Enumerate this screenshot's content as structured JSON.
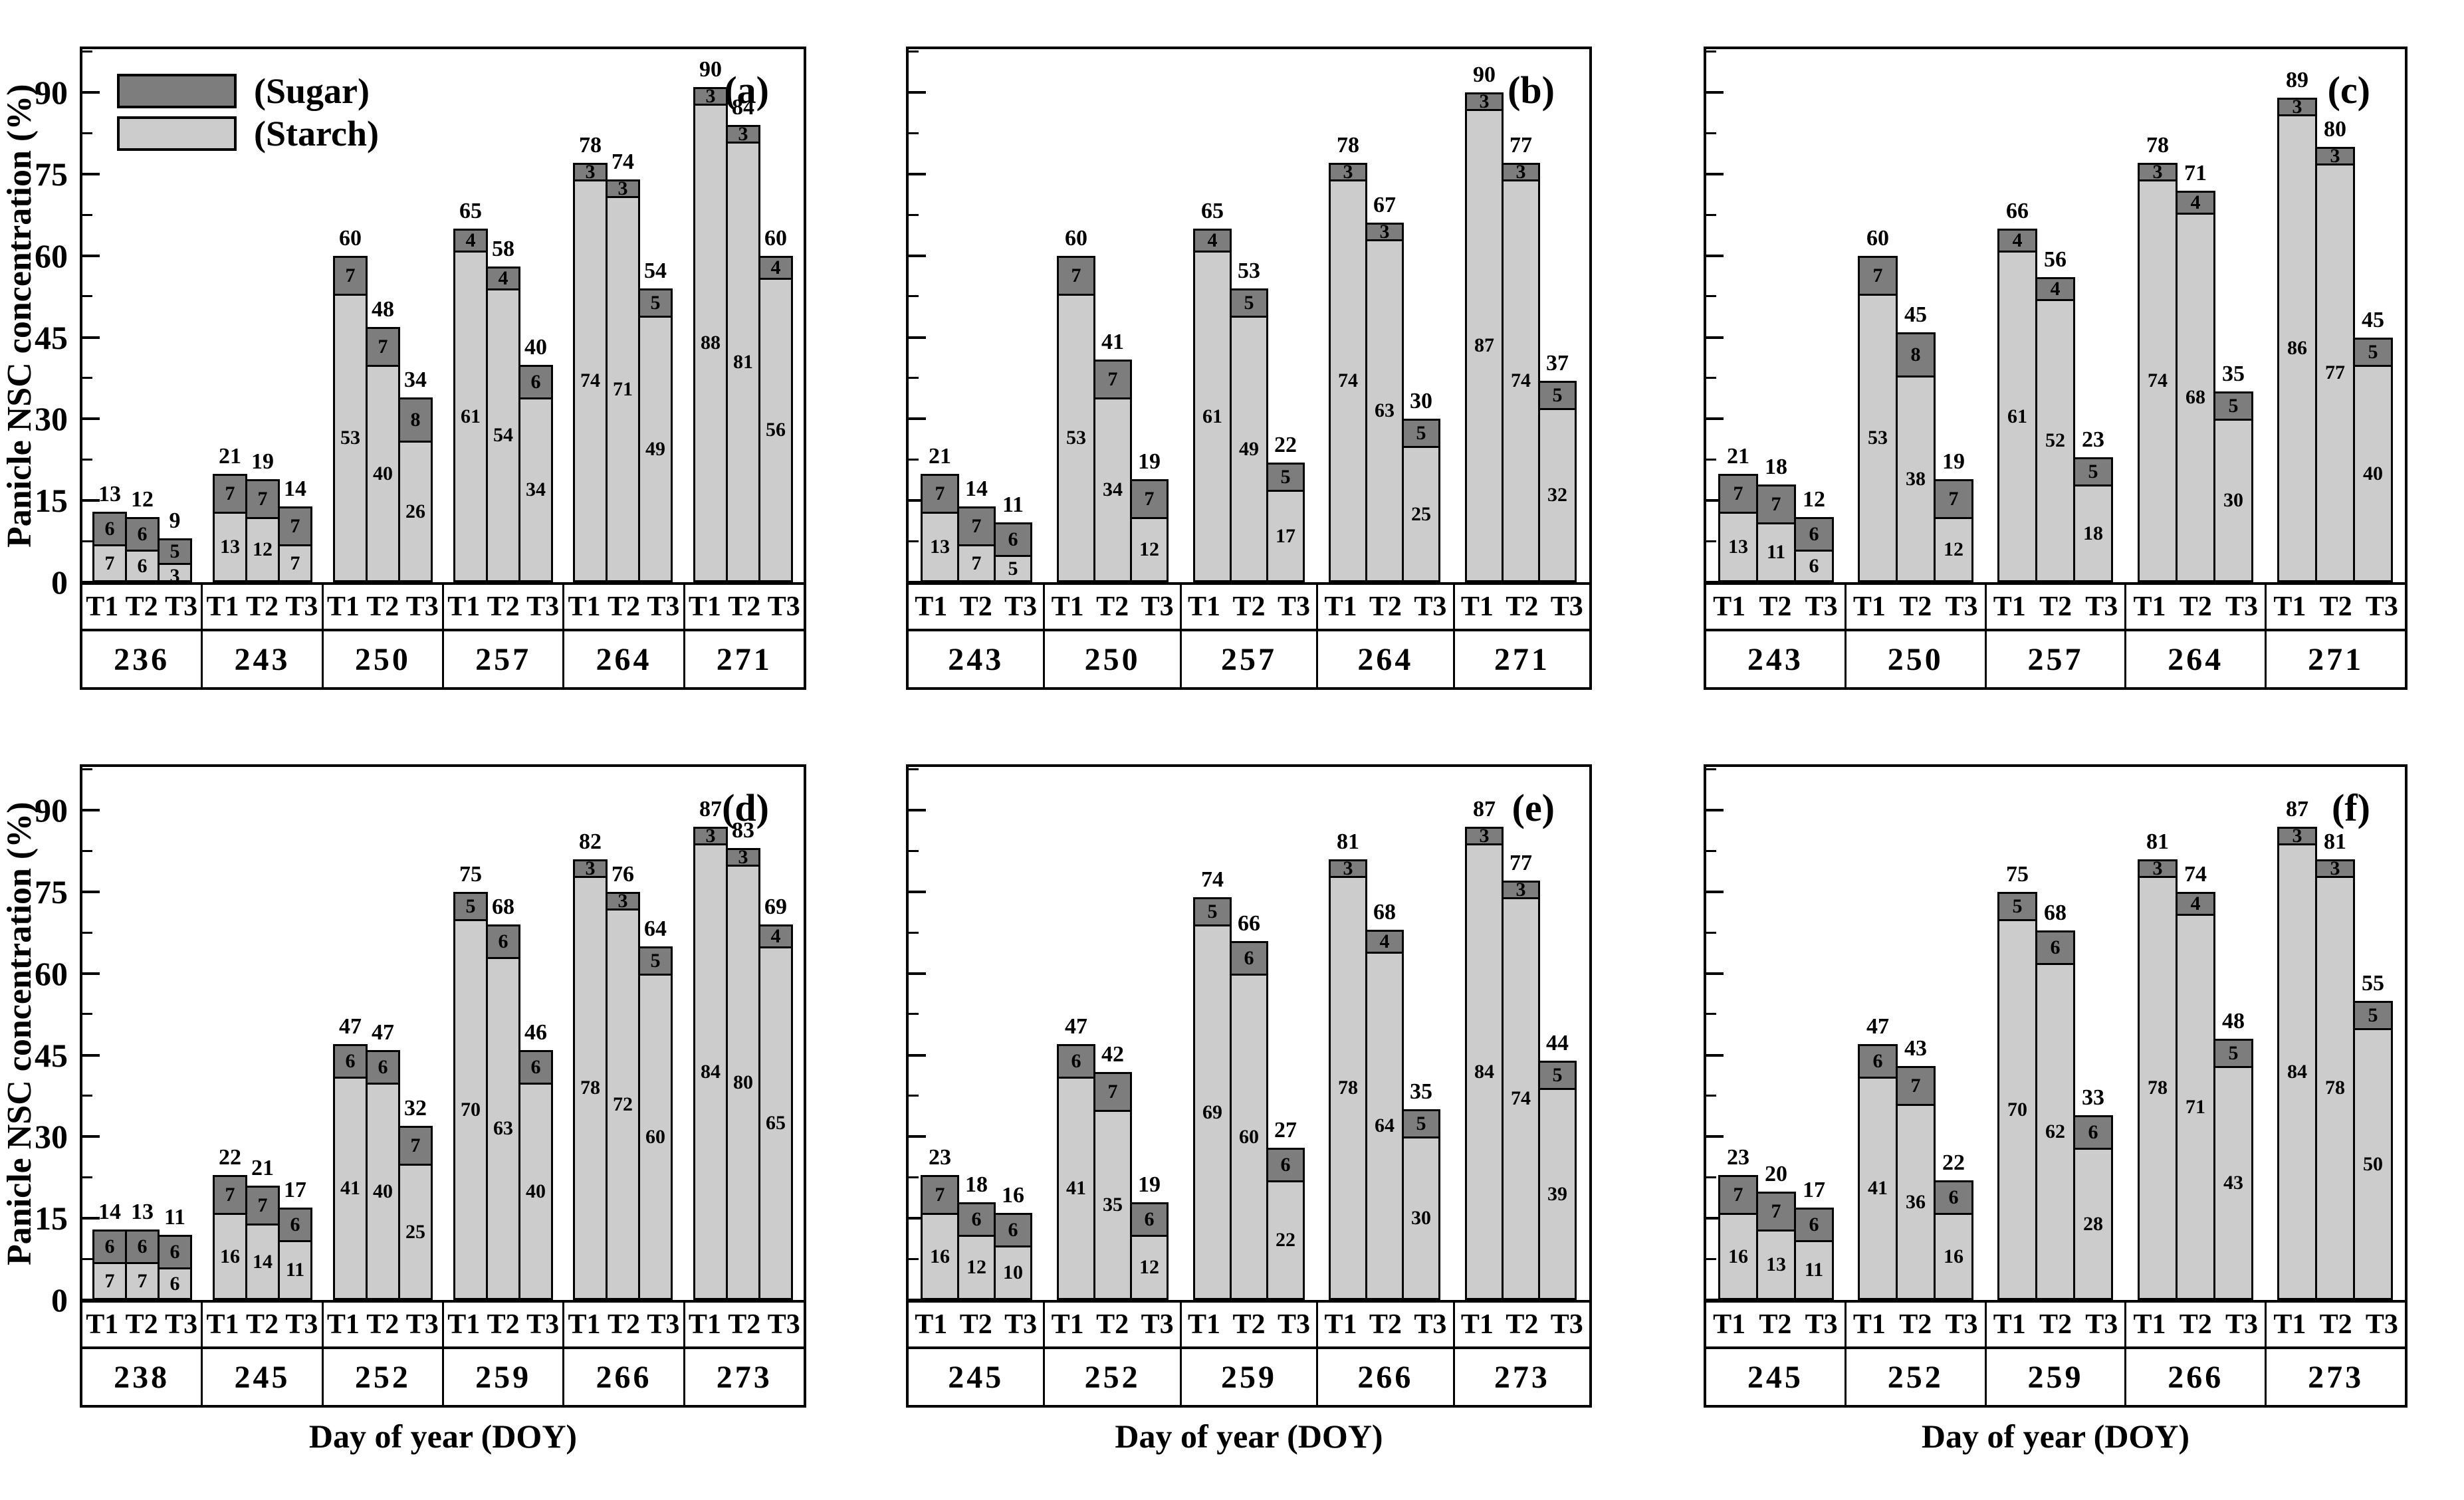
{
  "figure": {
    "y_axis": {
      "label": "Panicle NSC concentration (%)",
      "ticks": [
        0,
        15,
        30,
        45,
        60,
        75,
        90
      ],
      "max": 98,
      "minor_step": 7.5
    },
    "x_axis_label": "Day of year (DOY)",
    "treatments": [
      "T1",
      "T2",
      "T3"
    ],
    "legend": [
      {
        "name": "(Sugar)",
        "color": "#7d7d7d"
      },
      {
        "name": "(Starch)",
        "color": "#cccccc"
      }
    ],
    "colors": {
      "sugar": "#7d7d7d",
      "starch": "#cccccc",
      "outline": "#000000"
    }
  },
  "chart_data": [
    {
      "type": "stacked-bar",
      "panel": "(a)",
      "y_labels": true,
      "legend": true,
      "x_label": false,
      "groups": [
        {
          "doy": "236",
          "bars": [
            {
              "t": "T1",
              "total": 13,
              "sugar": 6,
              "starch": 7
            },
            {
              "t": "T2",
              "total": 12,
              "sugar": 6,
              "starch": 6
            },
            {
              "t": "T3",
              "total": 9,
              "sugar": 5,
              "starch": 3
            }
          ]
        },
        {
          "doy": "243",
          "bars": [
            {
              "t": "T1",
              "total": 21,
              "sugar": 7,
              "starch": 13
            },
            {
              "t": "T2",
              "total": 19,
              "sugar": 7,
              "starch": 12
            },
            {
              "t": "T3",
              "total": 14,
              "sugar": 7,
              "starch": 7
            }
          ]
        },
        {
          "doy": "250",
          "bars": [
            {
              "t": "T1",
              "total": 60,
              "sugar": 7,
              "starch": 53
            },
            {
              "t": "T2",
              "total": 48,
              "sugar": 7,
              "starch": 40
            },
            {
              "t": "T3",
              "total": 34,
              "sugar": 8,
              "starch": 26
            }
          ]
        },
        {
          "doy": "257",
          "bars": [
            {
              "t": "T1",
              "total": 65,
              "sugar": 4,
              "starch": 61
            },
            {
              "t": "T2",
              "total": 58,
              "sugar": 4,
              "starch": 54
            },
            {
              "t": "T3",
              "total": 40,
              "sugar": 6,
              "starch": 34
            }
          ]
        },
        {
          "doy": "264",
          "bars": [
            {
              "t": "T1",
              "total": 78,
              "sugar": 3,
              "starch": 74
            },
            {
              "t": "T2",
              "total": 74,
              "sugar": 3,
              "starch": 71
            },
            {
              "t": "T3",
              "total": 54,
              "sugar": 5,
              "starch": 49
            }
          ]
        },
        {
          "doy": "271",
          "bars": [
            {
              "t": "T1",
              "total": 90,
              "sugar": 3,
              "starch": 88
            },
            {
              "t": "T2",
              "total": 84,
              "sugar": 3,
              "starch": 81
            },
            {
              "t": "T3",
              "total": 60,
              "sugar": 4,
              "starch": 56
            }
          ]
        }
      ]
    },
    {
      "type": "stacked-bar",
      "panel": "(b)",
      "y_labels": false,
      "legend": false,
      "x_label": false,
      "groups": [
        {
          "doy": "243",
          "bars": [
            {
              "t": "T1",
              "total": 21,
              "sugar": 7,
              "starch": 13
            },
            {
              "t": "T2",
              "total": 14,
              "sugar": 7,
              "starch": 7
            },
            {
              "t": "T3",
              "total": 11,
              "sugar": 6,
              "starch": 5
            }
          ]
        },
        {
          "doy": "250",
          "bars": [
            {
              "t": "T1",
              "total": 60,
              "sugar": 7,
              "starch": 53
            },
            {
              "t": "T2",
              "total": 41,
              "sugar": 7,
              "starch": 34
            },
            {
              "t": "T3",
              "total": 19,
              "sugar": 7,
              "starch": 12
            }
          ]
        },
        {
          "doy": "257",
          "bars": [
            {
              "t": "T1",
              "total": 65,
              "sugar": 4,
              "starch": 61
            },
            {
              "t": "T2",
              "total": 53,
              "sugar": 5,
              "starch": 49
            },
            {
              "t": "T3",
              "total": 22,
              "sugar": 5,
              "starch": 17
            }
          ]
        },
        {
          "doy": "264",
          "bars": [
            {
              "t": "T1",
              "total": 78,
              "sugar": 3,
              "starch": 74
            },
            {
              "t": "T2",
              "total": 67,
              "sugar": 3,
              "starch": 63
            },
            {
              "t": "T3",
              "total": 30,
              "sugar": 5,
              "starch": 25
            }
          ]
        },
        {
          "doy": "271",
          "bars": [
            {
              "t": "T1",
              "total": 90,
              "sugar": 3,
              "starch": 87
            },
            {
              "t": "T2",
              "total": 77,
              "sugar": 3,
              "starch": 74
            },
            {
              "t": "T3",
              "total": 37,
              "sugar": 5,
              "starch": 32
            }
          ]
        }
      ]
    },
    {
      "type": "stacked-bar",
      "panel": "(c)",
      "y_labels": false,
      "legend": false,
      "x_label": false,
      "groups": [
        {
          "doy": "243",
          "bars": [
            {
              "t": "T1",
              "total": 21,
              "sugar": 7,
              "starch": 13
            },
            {
              "t": "T2",
              "total": 18,
              "sugar": 7,
              "starch": 11
            },
            {
              "t": "T3",
              "total": 12,
              "sugar": 6,
              "starch": 6
            }
          ]
        },
        {
          "doy": "250",
          "bars": [
            {
              "t": "T1",
              "total": 60,
              "sugar": 7,
              "starch": 53
            },
            {
              "t": "T2",
              "total": 45,
              "sugar": 8,
              "starch": 38
            },
            {
              "t": "T3",
              "total": 19,
              "sugar": 7,
              "starch": 12
            }
          ]
        },
        {
          "doy": "257",
          "bars": [
            {
              "t": "T1",
              "total": 66,
              "sugar": 4,
              "starch": 61
            },
            {
              "t": "T2",
              "total": 56,
              "sugar": 4,
              "starch": 52
            },
            {
              "t": "T3",
              "total": 23,
              "sugar": 5,
              "starch": 18
            }
          ]
        },
        {
          "doy": "264",
          "bars": [
            {
              "t": "T1",
              "total": 78,
              "sugar": 3,
              "starch": 74
            },
            {
              "t": "T2",
              "total": 71,
              "sugar": 4,
              "starch": 68
            },
            {
              "t": "T3",
              "total": 35,
              "sugar": 5,
              "starch": 30
            }
          ]
        },
        {
          "doy": "271",
          "bars": [
            {
              "t": "T1",
              "total": 89,
              "sugar": 3,
              "starch": 86
            },
            {
              "t": "T2",
              "total": 80,
              "sugar": 3,
              "starch": 77
            },
            {
              "t": "T3",
              "total": 45,
              "sugar": 5,
              "starch": 40
            }
          ]
        }
      ]
    },
    {
      "type": "stacked-bar",
      "panel": "(d)",
      "y_labels": true,
      "legend": false,
      "x_label": true,
      "groups": [
        {
          "doy": "238",
          "bars": [
            {
              "t": "T1",
              "total": 14,
              "sugar": 6,
              "starch": 7
            },
            {
              "t": "T2",
              "total": 13,
              "sugar": 6,
              "starch": 7
            },
            {
              "t": "T3",
              "total": 11,
              "sugar": 6,
              "starch": 6
            }
          ]
        },
        {
          "doy": "245",
          "bars": [
            {
              "t": "T1",
              "total": 22,
              "sugar": 7,
              "starch": 16
            },
            {
              "t": "T2",
              "total": 21,
              "sugar": 7,
              "starch": 14
            },
            {
              "t": "T3",
              "total": 17,
              "sugar": 6,
              "starch": 11
            }
          ]
        },
        {
          "doy": "252",
          "bars": [
            {
              "t": "T1",
              "total": 47,
              "sugar": 6,
              "starch": 41
            },
            {
              "t": "T2",
              "total": 47,
              "sugar": 6,
              "starch": 40
            },
            {
              "t": "T3",
              "total": 32,
              "sugar": 7,
              "starch": 25
            }
          ]
        },
        {
          "doy": "259",
          "bars": [
            {
              "t": "T1",
              "total": 75,
              "sugar": 5,
              "starch": 70
            },
            {
              "t": "T2",
              "total": 68,
              "sugar": 6,
              "starch": 63
            },
            {
              "t": "T3",
              "total": 46,
              "sugar": 6,
              "starch": 40
            }
          ]
        },
        {
          "doy": "266",
          "bars": [
            {
              "t": "T1",
              "total": 82,
              "sugar": 3,
              "starch": 78
            },
            {
              "t": "T2",
              "total": 76,
              "sugar": 3,
              "starch": 72
            },
            {
              "t": "T3",
              "total": 64,
              "sugar": 5,
              "starch": 60
            }
          ]
        },
        {
          "doy": "273",
          "bars": [
            {
              "t": "T1",
              "total": 87,
              "sugar": 3,
              "starch": 84
            },
            {
              "t": "T2",
              "total": 83,
              "sugar": 3,
              "starch": 80
            },
            {
              "t": "T3",
              "total": 69,
              "sugar": 4,
              "starch": 65
            }
          ]
        }
      ]
    },
    {
      "type": "stacked-bar",
      "panel": "(e)",
      "y_labels": false,
      "legend": false,
      "x_label": true,
      "groups": [
        {
          "doy": "245",
          "bars": [
            {
              "t": "T1",
              "total": 23,
              "sugar": 7,
              "starch": 16
            },
            {
              "t": "T2",
              "total": 18,
              "sugar": 6,
              "starch": 12
            },
            {
              "t": "T3",
              "total": 16,
              "sugar": 6,
              "starch": 10
            }
          ]
        },
        {
          "doy": "252",
          "bars": [
            {
              "t": "T1",
              "total": 47,
              "sugar": 6,
              "starch": 41
            },
            {
              "t": "T2",
              "total": 42,
              "sugar": 7,
              "starch": 35
            },
            {
              "t": "T3",
              "total": 19,
              "sugar": 6,
              "starch": 12
            }
          ]
        },
        {
          "doy": "259",
          "bars": [
            {
              "t": "T1",
              "total": 74,
              "sugar": 5,
              "starch": 69
            },
            {
              "t": "T2",
              "total": 66,
              "sugar": 6,
              "starch": 60
            },
            {
              "t": "T3",
              "total": 27,
              "sugar": 6,
              "starch": 22
            }
          ]
        },
        {
          "doy": "266",
          "bars": [
            {
              "t": "T1",
              "total": 81,
              "sugar": 3,
              "starch": 78
            },
            {
              "t": "T2",
              "total": 68,
              "sugar": 4,
              "starch": 64
            },
            {
              "t": "T3",
              "total": 35,
              "sugar": 5,
              "starch": 30
            }
          ]
        },
        {
          "doy": "273",
          "bars": [
            {
              "t": "T1",
              "total": 87,
              "sugar": 3,
              "starch": 84
            },
            {
              "t": "T2",
              "total": 77,
              "sugar": 3,
              "starch": 74
            },
            {
              "t": "T3",
              "total": 44,
              "sugar": 5,
              "starch": 39
            }
          ]
        }
      ]
    },
    {
      "type": "stacked-bar",
      "panel": "(f)",
      "y_labels": false,
      "legend": false,
      "x_label": true,
      "groups": [
        {
          "doy": "245",
          "bars": [
            {
              "t": "T1",
              "total": 23,
              "sugar": 7,
              "starch": 16
            },
            {
              "t": "T2",
              "total": 20,
              "sugar": 7,
              "starch": 13
            },
            {
              "t": "T3",
              "total": 17,
              "sugar": 6,
              "starch": 11
            }
          ]
        },
        {
          "doy": "252",
          "bars": [
            {
              "t": "T1",
              "total": 47,
              "sugar": 6,
              "starch": 41
            },
            {
              "t": "T2",
              "total": 43,
              "sugar": 7,
              "starch": 36
            },
            {
              "t": "T3",
              "total": 22,
              "sugar": 6,
              "starch": 16
            }
          ]
        },
        {
          "doy": "259",
          "bars": [
            {
              "t": "T1",
              "total": 75,
              "sugar": 5,
              "starch": 70
            },
            {
              "t": "T2",
              "total": 68,
              "sugar": 6,
              "starch": 62
            },
            {
              "t": "T3",
              "total": 33,
              "sugar": 6,
              "starch": 28
            }
          ]
        },
        {
          "doy": "266",
          "bars": [
            {
              "t": "T1",
              "total": 81,
              "sugar": 3,
              "starch": 78
            },
            {
              "t": "T2",
              "total": 74,
              "sugar": 4,
              "starch": 71
            },
            {
              "t": "T3",
              "total": 48,
              "sugar": 5,
              "starch": 43
            }
          ]
        },
        {
          "doy": "273",
          "bars": [
            {
              "t": "T1",
              "total": 87,
              "sugar": 3,
              "starch": 84
            },
            {
              "t": "T2",
              "total": 81,
              "sugar": 3,
              "starch": 78
            },
            {
              "t": "T3",
              "total": 55,
              "sugar": 5,
              "starch": 50
            }
          ]
        }
      ]
    }
  ]
}
